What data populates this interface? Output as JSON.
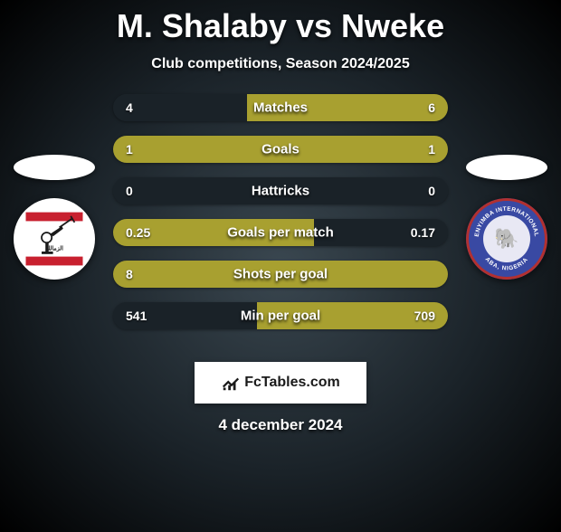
{
  "title": {
    "player1": "M. Shalaby",
    "vs": "vs",
    "player2": "Nweke"
  },
  "subtitle": "Club competitions, Season 2024/2025",
  "colors": {
    "bar_neutral": "#1a2228",
    "bar_player1": "#a8a030",
    "bar_player2": "#a8a030",
    "bar_tie": "#a8a030"
  },
  "stats": [
    {
      "label": "Matches",
      "left_val": "4",
      "right_val": "6",
      "left_pct": 40,
      "right_pct": 60,
      "winner": "right"
    },
    {
      "label": "Goals",
      "left_val": "1",
      "right_val": "1",
      "left_pct": 50,
      "right_pct": 50,
      "winner": "tie"
    },
    {
      "label": "Hattricks",
      "left_val": "0",
      "right_val": "0",
      "left_pct": 0,
      "right_pct": 0,
      "winner": "none"
    },
    {
      "label": "Goals per match",
      "left_val": "0.25",
      "right_val": "0.17",
      "left_pct": 60,
      "right_pct": 40,
      "winner": "left"
    },
    {
      "label": "Shots per goal",
      "left_val": "8",
      "right_val": "",
      "left_pct": 100,
      "right_pct": 0,
      "winner": "left"
    },
    {
      "label": "Min per goal",
      "left_val": "541",
      "right_val": "709",
      "left_pct": 43,
      "right_pct": 57,
      "winner": "right"
    }
  ],
  "watermark": "FcTables.com",
  "date": "4 december 2024",
  "clubs": {
    "left_name": "zamalek",
    "right_name": "enyimba"
  }
}
